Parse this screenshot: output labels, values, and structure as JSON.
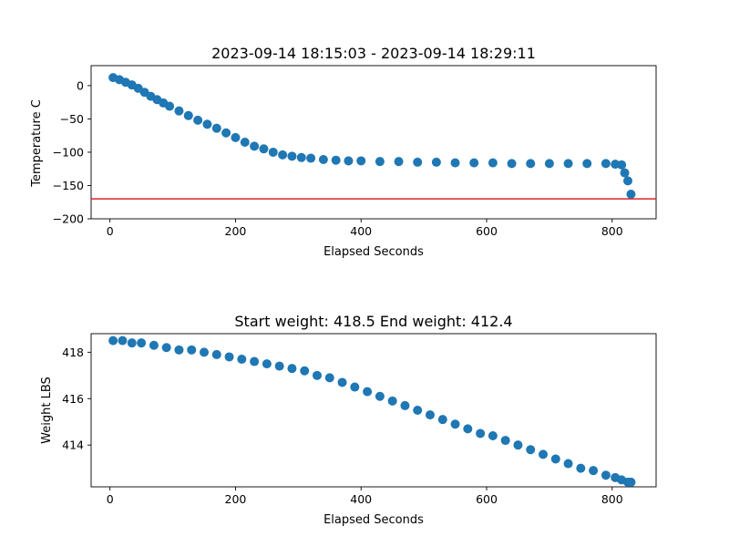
{
  "chart_data": [
    {
      "type": "scatter",
      "title": "2023-09-14 18:15:03 - 2023-09-14 18:29:11",
      "xlabel": "Elapsed Seconds",
      "ylabel": "Temperature C",
      "xlim": [
        -30,
        870
      ],
      "ylim": [
        -200,
        30
      ],
      "xticks": [
        0,
        200,
        400,
        600,
        800
      ],
      "yticks": [
        0,
        -50,
        -100,
        -150,
        -200
      ],
      "grid": false,
      "marker_color": "#1f77b4",
      "hline": {
        "y": -170,
        "color": "#d62728"
      },
      "x": [
        5,
        15,
        25,
        35,
        45,
        55,
        65,
        75,
        85,
        95,
        110,
        125,
        140,
        155,
        170,
        185,
        200,
        215,
        230,
        245,
        260,
        275,
        290,
        305,
        320,
        340,
        360,
        380,
        400,
        430,
        460,
        490,
        520,
        550,
        580,
        610,
        640,
        670,
        700,
        730,
        760,
        790,
        805,
        815,
        820,
        825,
        830
      ],
      "y": [
        12,
        9,
        5,
        1,
        -4,
        -10,
        -16,
        -21,
        -26,
        -31,
        -38,
        -45,
        -52,
        -58,
        -64,
        -71,
        -78,
        -85,
        -91,
        -95,
        -100,
        -104,
        -106,
        -108,
        -109,
        -111,
        -112,
        -113,
        -113,
        -114,
        -114,
        -115,
        -115,
        -116,
        -116,
        -116,
        -117,
        -117,
        -117,
        -117,
        -117,
        -117,
        -118,
        -119,
        -131,
        -143,
        -163
      ]
    },
    {
      "type": "scatter",
      "title": "Start weight: 418.5 End weight: 412.4",
      "xlabel": "Elapsed Seconds",
      "ylabel": "Weight LBS",
      "xlim": [
        -30,
        870
      ],
      "ylim": [
        412.2,
        418.8
      ],
      "xticks": [
        0,
        200,
        400,
        600,
        800
      ],
      "yticks": [
        418,
        416,
        414
      ],
      "grid": false,
      "marker_color": "#1f77b4",
      "x": [
        5,
        20,
        35,
        50,
        70,
        90,
        110,
        130,
        150,
        170,
        190,
        210,
        230,
        250,
        270,
        290,
        310,
        330,
        350,
        370,
        390,
        410,
        430,
        450,
        470,
        490,
        510,
        530,
        550,
        570,
        590,
        610,
        630,
        650,
        670,
        690,
        710,
        730,
        750,
        770,
        790,
        805,
        815,
        825,
        830
      ],
      "y": [
        418.5,
        418.5,
        418.4,
        418.4,
        418.3,
        418.2,
        418.1,
        418.1,
        418.0,
        417.9,
        417.8,
        417.7,
        417.6,
        417.5,
        417.4,
        417.3,
        417.2,
        417.0,
        416.9,
        416.7,
        416.5,
        416.3,
        416.1,
        415.9,
        415.7,
        415.5,
        415.3,
        415.1,
        414.9,
        414.7,
        414.5,
        414.4,
        414.2,
        414.0,
        413.8,
        413.6,
        413.4,
        413.2,
        413.0,
        412.9,
        412.7,
        412.6,
        412.5,
        412.4,
        412.4
      ]
    }
  ]
}
